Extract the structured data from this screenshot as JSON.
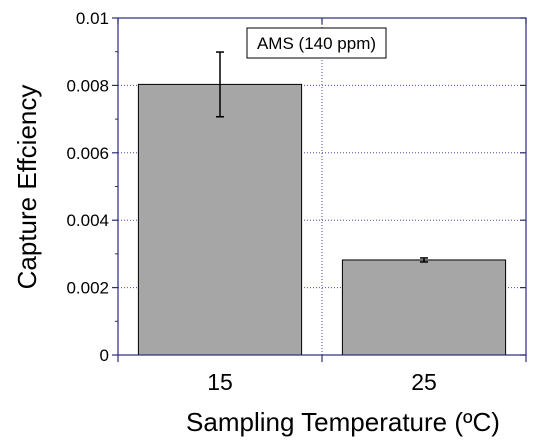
{
  "chart_data": {
    "type": "bar",
    "categories": [
      "15",
      "25"
    ],
    "values": [
      0.00803,
      0.00282
    ],
    "error": [
      0.00096,
      6e-05
    ],
    "xlabel": "Sampling Temperature (ºC)",
    "ylabel": "Capture Effciency",
    "ylim": [
      0,
      0.01
    ],
    "yticks": [
      "0",
      "0.002",
      "0.004",
      "0.006",
      "0.008",
      "0.01"
    ],
    "annotation": "AMS (140 ppm)",
    "grid": true,
    "colors": {
      "bar_fill": "#a6a6a6",
      "bar_stroke": "#000000",
      "frame": "#2b2b7a",
      "grid": "#4848a8"
    }
  }
}
